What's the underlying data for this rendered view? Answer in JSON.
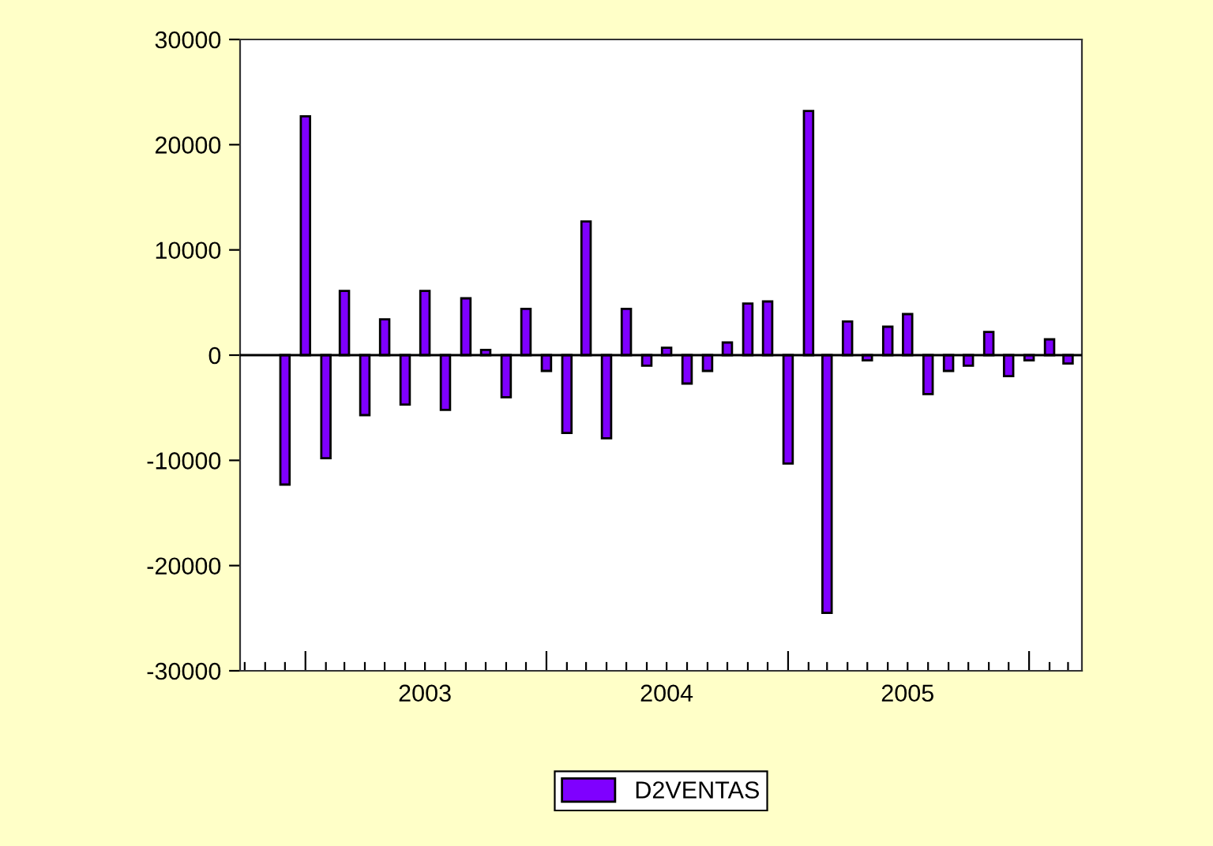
{
  "chart_data": {
    "type": "bar",
    "x": [
      "2002-12",
      "2003-01",
      "2003-02",
      "2003-03",
      "2003-04",
      "2003-05",
      "2003-06",
      "2003-07",
      "2003-08",
      "2003-09",
      "2003-10",
      "2003-11",
      "2003-12",
      "2004-01",
      "2004-02",
      "2004-03",
      "2004-04",
      "2004-05",
      "2004-06",
      "2004-07",
      "2004-08",
      "2004-09",
      "2004-10",
      "2004-11",
      "2004-12",
      "2005-01",
      "2005-02",
      "2005-03",
      "2005-04",
      "2005-05",
      "2005-06",
      "2005-07",
      "2005-08",
      "2005-09",
      "2005-10",
      "2005-11",
      "2005-12",
      "2006-01",
      "2006-02",
      "2006-03"
    ],
    "series": [
      {
        "name": "D2VENTAS",
        "color": "#7f00ff",
        "values": [
          -12300,
          22700,
          -9800,
          6100,
          -5700,
          3400,
          -4700,
          6100,
          -5200,
          5400,
          500,
          -4000,
          4400,
          -1500,
          -7400,
          12700,
          -7900,
          4400,
          -1000,
          700,
          -2700,
          -1500,
          1200,
          4900,
          5100,
          -10300,
          23200,
          -24500,
          3200,
          -500,
          2700,
          3900,
          -3700,
          -1500,
          -1000,
          2200,
          -2000,
          -500,
          1500,
          -800
        ]
      }
    ],
    "xlim": [
      "2002-09-24",
      "2006-03-22"
    ],
    "xticks": [
      {
        "value": "2002-10",
        "label": null
      },
      {
        "value": "2002-11",
        "label": null
      },
      {
        "value": "2002-12",
        "label": null
      },
      {
        "value": "2003-01",
        "label": null
      },
      {
        "value": "2003-02",
        "label": null
      },
      {
        "value": "2003-03",
        "label": null
      },
      {
        "value": "2003-04",
        "label": null
      },
      {
        "value": "2003-05",
        "label": null
      },
      {
        "value": "2003-06",
        "label": null
      },
      {
        "value": "2003-07",
        "label": "2003"
      },
      {
        "value": "2003-08",
        "label": null
      },
      {
        "value": "2003-09",
        "label": null
      },
      {
        "value": "2003-10",
        "label": null
      },
      {
        "value": "2003-11",
        "label": null
      },
      {
        "value": "2003-12",
        "label": null
      },
      {
        "value": "2004-01",
        "label": null
      },
      {
        "value": "2004-02",
        "label": null
      },
      {
        "value": "2004-03",
        "label": null
      },
      {
        "value": "2004-04",
        "label": null
      },
      {
        "value": "2004-05",
        "label": null
      },
      {
        "value": "2004-06",
        "label": null
      },
      {
        "value": "2004-07",
        "label": "2004"
      },
      {
        "value": "2004-08",
        "label": null
      },
      {
        "value": "2004-09",
        "label": null
      },
      {
        "value": "2004-10",
        "label": null
      },
      {
        "value": "2004-11",
        "label": null
      },
      {
        "value": "2004-12",
        "label": null
      },
      {
        "value": "2005-01",
        "label": null
      },
      {
        "value": "2005-02",
        "label": null
      },
      {
        "value": "2005-03",
        "label": null
      },
      {
        "value": "2005-04",
        "label": null
      },
      {
        "value": "2005-05",
        "label": null
      },
      {
        "value": "2005-06",
        "label": null
      },
      {
        "value": "2005-07",
        "label": "2005"
      },
      {
        "value": "2005-08",
        "label": null
      },
      {
        "value": "2005-09",
        "label": null
      },
      {
        "value": "2005-10",
        "label": null
      },
      {
        "value": "2005-11",
        "label": null
      },
      {
        "value": "2005-12",
        "label": null
      },
      {
        "value": "2006-01",
        "label": null
      },
      {
        "value": "2006-02",
        "label": null
      },
      {
        "value": "2006-03",
        "label": null
      }
    ],
    "ylim": [
      -30000,
      30000
    ],
    "yticks": [
      -30000,
      -20000,
      -10000,
      0,
      10000,
      20000,
      30000
    ],
    "ref_lines": [
      {
        "axis": "y",
        "value": 0,
        "color": "#000000"
      }
    ],
    "grid": false,
    "legend": "bottom"
  }
}
